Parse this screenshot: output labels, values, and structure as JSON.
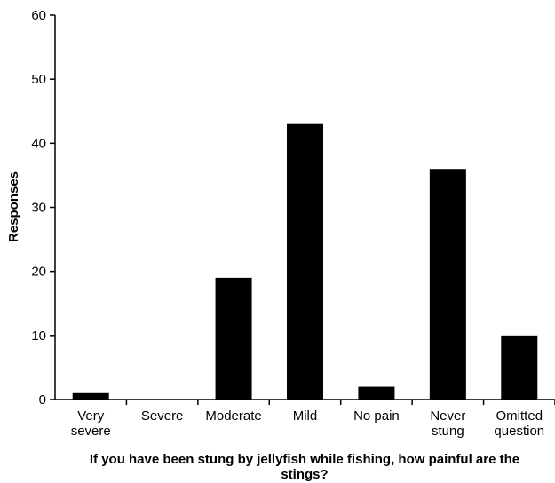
{
  "chart_data": {
    "type": "bar",
    "title": "",
    "xlabel": "If you have been stung by jellyfish while fishing, how painful are the stings?",
    "ylabel": "Responses",
    "categories": [
      [
        "Very",
        "severe"
      ],
      [
        "Severe"
      ],
      [
        "Moderate"
      ],
      [
        "Mild"
      ],
      [
        "No pain"
      ],
      [
        "Never",
        "stung"
      ],
      [
        "Omitted",
        "question"
      ]
    ],
    "values": [
      1,
      0,
      19,
      43,
      2,
      36,
      10
    ],
    "ylim": [
      0,
      60
    ],
    "yticks": [
      0,
      10,
      20,
      30,
      40,
      50,
      60
    ],
    "grid": false,
    "bar_color": "#000000"
  }
}
